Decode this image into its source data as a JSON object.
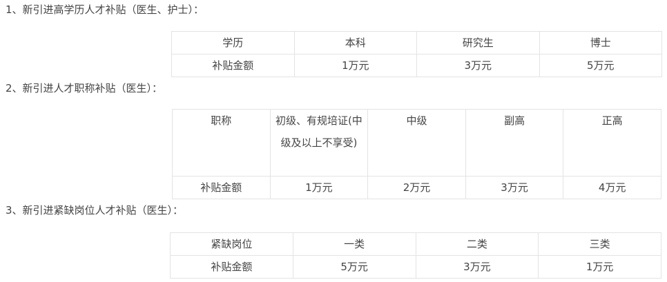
{
  "sections": [
    {
      "heading": "1、新引进高学历人才补贴（医生、护士）：",
      "header": [
        "学历",
        "本科",
        "研究生",
        "博士"
      ],
      "row": [
        "补贴金额",
        "1万元",
        "3万元",
        "5万元"
      ]
    },
    {
      "heading": "2、新引进人才职称补贴（医生）：",
      "header": [
        "职称",
        "初级、有规培证(中级及以上不享受)",
        "中级",
        "副高",
        "正高"
      ],
      "row": [
        "补贴金额",
        "1万元",
        "2万元",
        "3万元",
        "4万元"
      ]
    },
    {
      "heading": "3、新引进紧缺岗位人才补贴（医生）：",
      "header": [
        "紧缺岗位",
        "一类",
        "二类",
        "三类"
      ],
      "row": [
        "补贴金额",
        "5万元",
        "3万元",
        "1万元"
      ]
    }
  ]
}
